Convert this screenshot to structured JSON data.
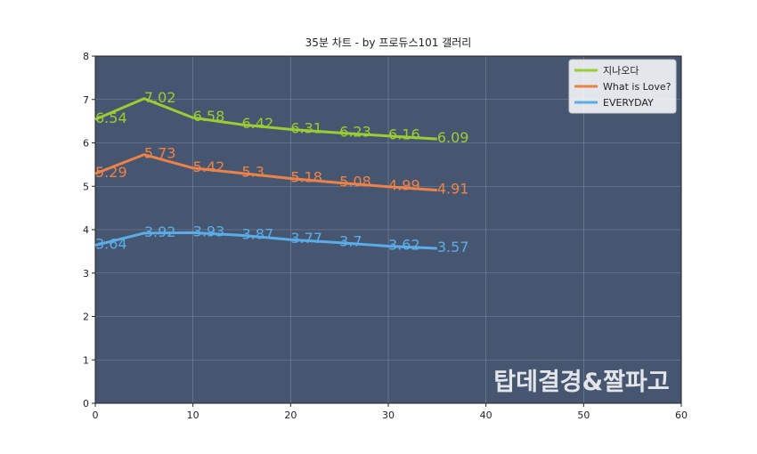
{
  "chart_data": {
    "type": "line",
    "title": "35분 차트 - by 프로듀스101 갤러리",
    "x": [
      0,
      5,
      10,
      15,
      20,
      25,
      30,
      35
    ],
    "series": [
      {
        "name": "지나오다",
        "color": "#9acd32",
        "values": [
          6.54,
          7.02,
          6.58,
          6.42,
          6.31,
          6.23,
          6.16,
          6.09
        ]
      },
      {
        "name": "What is Love?",
        "color": "#ed8248",
        "values": [
          5.29,
          5.73,
          5.42,
          5.3,
          5.18,
          5.08,
          4.99,
          4.91
        ]
      },
      {
        "name": "EVERYDAY",
        "color": "#5aade6",
        "values": [
          3.64,
          3.92,
          3.93,
          3.87,
          3.77,
          3.7,
          3.62,
          3.57
        ]
      }
    ],
    "xlim": [
      0,
      60
    ],
    "xticks": [
      0,
      10,
      20,
      30,
      40,
      50,
      60
    ],
    "ylim": [
      0,
      8
    ],
    "yticks": [
      0,
      1,
      2,
      3,
      4,
      5,
      6,
      7,
      8
    ],
    "grid": true,
    "legend": "upper right",
    "plot_background": "#475670",
    "annotation": "탑데결경&짤파고"
  }
}
